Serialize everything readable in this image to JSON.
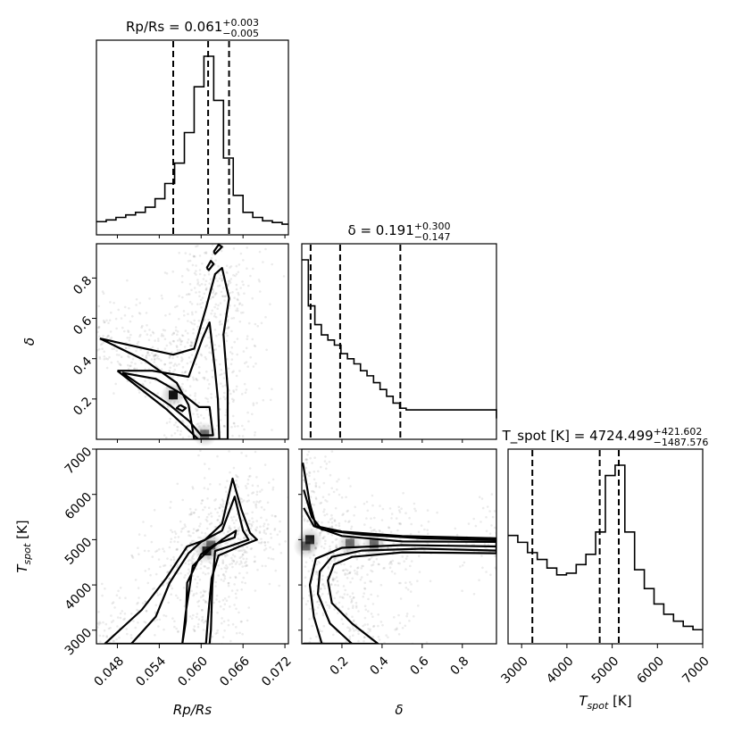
{
  "chart_data": {
    "type": "corner",
    "parameters": [
      {
        "key": "rp",
        "xlabel": "Rp/Rs",
        "range": [
          0.045,
          0.0725
        ],
        "ticks": [
          0.048,
          0.054,
          0.06,
          0.066,
          0.072
        ],
        "tick_labels": [
          "0.048",
          "0.054",
          "0.060",
          "0.066",
          "0.072"
        ]
      },
      {
        "key": "delta",
        "xlabel": "δ",
        "range": [
          0.0,
          0.97
        ],
        "ticks": [
          0.2,
          0.4,
          0.6,
          0.8
        ],
        "tick_labels": [
          "0.2",
          "0.4",
          "0.6",
          "0.8"
        ]
      },
      {
        "key": "tspot",
        "xlabel": "T_spot [K]",
        "range": [
          2700,
          7000
        ],
        "ticks": [
          3000,
          4000,
          5000,
          6000,
          7000
        ],
        "tick_labels": [
          "3000",
          "4000",
          "5000",
          "6000",
          "7000"
        ]
      }
    ],
    "diagonal": [
      {
        "title_lhs": "Rp/Rs = 0.061",
        "title_plus": "+0.003",
        "title_minus": "−0.005",
        "median": 0.061,
        "q16": 0.056,
        "q84": 0.064,
        "bin_edges": [
          0.045,
          0.0464,
          0.0478,
          0.0492,
          0.0506,
          0.052,
          0.0534,
          0.0548,
          0.0562,
          0.0576,
          0.059,
          0.0604,
          0.0618,
          0.0632,
          0.0646,
          0.066,
          0.0674,
          0.0688,
          0.0702,
          0.0716,
          0.0725
        ],
        "counts": [
          0.025,
          0.035,
          0.05,
          0.065,
          0.08,
          0.11,
          0.16,
          0.25,
          0.37,
          0.55,
          0.82,
          1.0,
          0.74,
          0.4,
          0.18,
          0.08,
          0.05,
          0.03,
          0.02,
          0.01
        ]
      },
      {
        "title_lhs": "δ = 0.191",
        "title_plus": "+0.300",
        "title_minus": "−0.147",
        "median": 0.191,
        "q16": 0.044,
        "q84": 0.491,
        "bin_edges": [
          0.0,
          0.0325,
          0.065,
          0.0975,
          0.13,
          0.1625,
          0.195,
          0.2275,
          0.26,
          0.2925,
          0.325,
          0.3575,
          0.39,
          0.4225,
          0.455,
          0.4875,
          0.52,
          0.97
        ],
        "counts": [
          1.0,
          0.73,
          0.62,
          0.56,
          0.53,
          0.5,
          0.45,
          0.42,
          0.39,
          0.35,
          0.32,
          0.28,
          0.24,
          0.2,
          0.16,
          0.13,
          0.12
        ],
        "tail_end": 0.07
      },
      {
        "title_lhs": "T_spot [K] = 4724.499",
        "title_plus": "+421.602",
        "title_minus": "−1487.576",
        "median": 4724.5,
        "q16": 3236.9,
        "q84": 5146.1,
        "bin_edges": [
          2700,
          2915,
          3130,
          3345,
          3560,
          3775,
          3990,
          4205,
          4420,
          4635,
          4850,
          5065,
          5280,
          5495,
          5710,
          5925,
          6140,
          6355,
          6570,
          6785,
          7000
        ],
        "counts": [
          0.58,
          0.54,
          0.48,
          0.44,
          0.39,
          0.35,
          0.36,
          0.41,
          0.47,
          0.6,
          0.93,
          0.99,
          0.6,
          0.38,
          0.27,
          0.18,
          0.12,
          0.08,
          0.05,
          0.03
        ]
      }
    ],
    "pairs": [
      {
        "x": "rp",
        "y": "delta",
        "ylabel": "δ",
        "yrange": [
          0.0,
          0.97
        ],
        "yticks": [
          0.2,
          0.4,
          0.6,
          0.8
        ],
        "ytick_labels": [
          "0.2",
          "0.4",
          "0.6",
          "0.8"
        ],
        "contours": [
          [
            [
              0.0455,
              0.5
            ],
            [
              0.052,
              0.39
            ],
            [
              0.0565,
              0.28
            ],
            [
              0.0582,
              0.17
            ],
            [
              0.059,
              0.0
            ],
            [
              0.0638,
              0.0
            ],
            [
              0.0638,
              0.25
            ],
            [
              0.0632,
              0.52
            ],
            [
              0.064,
              0.7
            ],
            [
              0.063,
              0.85
            ],
            [
              0.062,
              0.82
            ],
            [
              0.0607,
              0.65
            ],
            [
              0.059,
              0.45
            ],
            [
              0.056,
              0.42
            ],
            [
              0.052,
              0.45
            ],
            [
              0.0455,
              0.5
            ]
          ],
          [
            [
              0.048,
              0.34
            ],
            [
              0.055,
              0.15
            ],
            [
              0.0578,
              0.06
            ],
            [
              0.0596,
              0.0
            ],
            [
              0.0626,
              0.0
            ],
            [
              0.0624,
              0.2
            ],
            [
              0.062,
              0.34
            ],
            [
              0.0612,
              0.58
            ],
            [
              0.0602,
              0.5
            ],
            [
              0.0582,
              0.31
            ],
            [
              0.053,
              0.34
            ],
            [
              0.048,
              0.34
            ]
          ],
          [
            [
              0.0487,
              0.33
            ],
            [
              0.0555,
              0.17
            ],
            [
              0.0583,
              0.09
            ],
            [
              0.06,
              0.02
            ],
            [
              0.0617,
              0.02
            ],
            [
              0.0612,
              0.16
            ],
            [
              0.0597,
              0.16
            ],
            [
              0.0575,
              0.22
            ],
            [
              0.0535,
              0.3
            ],
            [
              0.0487,
              0.33
            ]
          ],
          [
            [
              0.057,
              0.17
            ],
            [
              0.0578,
              0.155
            ],
            [
              0.0573,
              0.14
            ],
            [
              0.0565,
              0.155
            ],
            [
              0.057,
              0.17
            ]
          ],
          [
            [
              0.0618,
              0.93
            ],
            [
              0.0625,
              0.965
            ],
            [
              0.063,
              0.955
            ],
            [
              0.062,
              0.92
            ],
            [
              0.0618,
              0.93
            ]
          ],
          [
            [
              0.0608,
              0.85
            ],
            [
              0.0614,
              0.885
            ],
            [
              0.0618,
              0.87
            ],
            [
              0.0611,
              0.84
            ],
            [
              0.0608,
              0.85
            ]
          ]
        ],
        "dense_points": [
          [
            0.056,
            0.22
          ],
          [
            0.0605,
            0.025
          ]
        ]
      },
      {
        "x": "rp",
        "y": "tspot",
        "ylabel": "T_spot [K]",
        "yrange": [
          2700,
          7000
        ],
        "yticks": [
          3000,
          4000,
          5000,
          6000,
          7000
        ],
        "ytick_labels": [
          "3000",
          "4000",
          "5000",
          "6000",
          "7000"
        ],
        "contours": [
          [
            [
              0.0462,
              2700
            ],
            [
              0.0515,
              3450
            ],
            [
              0.055,
              4150
            ],
            [
              0.058,
              4850
            ],
            [
              0.0605,
              4990
            ],
            [
              0.063,
              5350
            ],
            [
              0.0645,
              6350
            ],
            [
              0.0658,
              5650
            ],
            [
              0.067,
              5150
            ],
            [
              0.068,
              5000
            ],
            [
              0.0655,
              4850
            ],
            [
              0.0625,
              4650
            ],
            [
              0.0615,
              4150
            ],
            [
              0.061,
              3300
            ],
            [
              0.0607,
              2700
            ],
            [
              0.0462,
              2700
            ]
          ],
          [
            [
              0.05,
              2700
            ],
            [
              0.0535,
              3300
            ],
            [
              0.0555,
              4050
            ],
            [
              0.0582,
              4700
            ],
            [
              0.06,
              4950
            ],
            [
              0.063,
              5200
            ],
            [
              0.0648,
              5950
            ],
            [
              0.066,
              5200
            ],
            [
              0.0668,
              5000
            ],
            [
              0.064,
              4850
            ],
            [
              0.062,
              4750
            ],
            [
              0.0616,
              4000
            ],
            [
              0.0614,
              3000
            ],
            [
              0.0612,
              2700
            ]
          ],
          [
            [
              0.0573,
              2700
            ],
            [
              0.0578,
              3200
            ],
            [
              0.058,
              4050
            ],
            [
              0.06,
              4680
            ],
            [
              0.062,
              4900
            ],
            [
              0.0648,
              5050
            ],
            [
              0.065,
              5200
            ],
            [
              0.063,
              5000
            ],
            [
              0.0612,
              4780
            ],
            [
              0.0588,
              4420
            ],
            [
              0.0578,
              3400
            ],
            [
              0.0573,
              2700
            ]
          ]
        ],
        "dense_points": [
          [
            0.0608,
            4750
          ],
          [
            0.0614,
            4880
          ]
        ]
      },
      {
        "x": "delta",
        "y": "tspot",
        "yrange": [
          2700,
          7000
        ],
        "contours": [
          [
            [
              0.005,
              6700
            ],
            [
              0.04,
              5800
            ],
            [
              0.07,
              5300
            ],
            [
              0.2,
              5180
            ],
            [
              0.5,
              5080
            ],
            [
              0.97,
              5030
            ],
            [
              0.97,
              4700
            ],
            [
              0.5,
              4720
            ],
            [
              0.25,
              4620
            ],
            [
              0.16,
              4450
            ],
            [
              0.13,
              4100
            ],
            [
              0.15,
              3600
            ],
            [
              0.25,
              3150
            ],
            [
              0.38,
              2700
            ],
            [
              0.005,
              2700
            ]
          ],
          [
            [
              0.01,
              6100
            ],
            [
              0.05,
              5500
            ],
            [
              0.1,
              5220
            ],
            [
              0.3,
              5110
            ],
            [
              0.6,
              5030
            ],
            [
              0.97,
              4990
            ],
            [
              0.97,
              4760
            ],
            [
              0.6,
              4800
            ],
            [
              0.3,
              4760
            ],
            [
              0.15,
              4620
            ],
            [
              0.09,
              4300
            ],
            [
              0.08,
              3800
            ],
            [
              0.14,
              3150
            ],
            [
              0.25,
              2700
            ],
            [
              0.01,
              2700
            ]
          ],
          [
            [
              0.01,
              5700
            ],
            [
              0.06,
              5300
            ],
            [
              0.2,
              5080
            ],
            [
              0.5,
              4960
            ],
            [
              0.97,
              4950
            ],
            [
              0.97,
              4850
            ],
            [
              0.5,
              4880
            ],
            [
              0.2,
              4820
            ],
            [
              0.07,
              4580
            ],
            [
              0.04,
              4000
            ],
            [
              0.06,
              3300
            ],
            [
              0.1,
              2700
            ],
            [
              0.01,
              2700
            ]
          ]
        ],
        "dense_points": [
          [
            0.04,
            5000
          ],
          [
            0.24,
            4920
          ],
          [
            0.02,
            4860
          ],
          [
            0.36,
            4900
          ]
        ]
      }
    ]
  }
}
